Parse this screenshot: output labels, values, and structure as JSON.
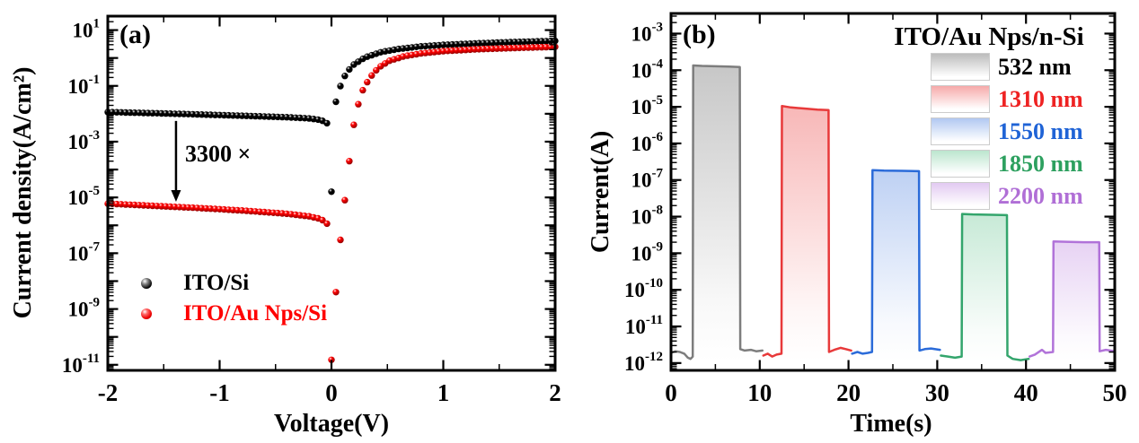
{
  "figure_background": "#ffffff",
  "chart_data": [
    {
      "type": "scatter",
      "panel_label": "(a)",
      "xlabel": "Voltage(V)",
      "ylabel": "Current density(A/cm²)",
      "xlim": [
        -2,
        2
      ],
      "x_ticks": [
        -2,
        -1,
        0,
        1,
        2
      ],
      "x_minor_step": 0.5,
      "ylog": true,
      "ylim_exp": [
        -11.2,
        1.5
      ],
      "y_labeled_exps": [
        1,
        -1,
        -3,
        -5,
        -7,
        -9,
        -11
      ],
      "marker_step_v": 0.04,
      "series": [
        {
          "name": "ITO/Si",
          "color": "#000000",
          "anchors_v_jacm2": [
            [
              -2,
              0.0115
            ],
            [
              -1.6,
              0.0105
            ],
            [
              -1.2,
              0.0095
            ],
            [
              -0.8,
              0.0085
            ],
            [
              -0.4,
              0.0075
            ],
            [
              -0.2,
              0.0068
            ],
            [
              -0.1,
              0.006
            ],
            [
              -0.06,
              0.0052
            ],
            [
              -0.03,
              0.0043
            ],
            [
              0,
              1.6e-05
            ],
            [
              0.03,
              0.018
            ],
            [
              0.06,
              0.06
            ],
            [
              0.1,
              0.16
            ],
            [
              0.14,
              0.32
            ],
            [
              0.2,
              0.58
            ],
            [
              0.3,
              1.05
            ],
            [
              0.45,
              1.65
            ],
            [
              0.6,
              2.1
            ],
            [
              0.8,
              2.6
            ],
            [
              1.0,
              2.95
            ],
            [
              1.3,
              3.35
            ],
            [
              1.6,
              3.7
            ],
            [
              2.0,
              4.1
            ]
          ]
        },
        {
          "name": "ITO/Au Nps/Si",
          "color": "#ff0000",
          "anchors_v_jacm2": [
            [
              -2,
              6e-06
            ],
            [
              -1.6,
              5e-06
            ],
            [
              -1.2,
              4.2e-06
            ],
            [
              -0.8,
              3.4e-06
            ],
            [
              -0.4,
              2.6e-06
            ],
            [
              -0.2,
              2.1e-06
            ],
            [
              -0.1,
              1.7e-06
            ],
            [
              -0.05,
              1.3e-06
            ],
            [
              -0.02,
              9e-07
            ],
            [
              0,
              1.5e-11
            ],
            [
              0.04,
              4e-09
            ],
            [
              0.08,
              3e-07
            ],
            [
              0.12,
              8e-06
            ],
            [
              0.16,
              0.0002
            ],
            [
              0.2,
              0.004
            ],
            [
              0.24,
              0.022
            ],
            [
              0.28,
              0.07
            ],
            [
              0.34,
              0.19
            ],
            [
              0.42,
              0.45
            ],
            [
              0.52,
              0.8
            ],
            [
              0.65,
              1.15
            ],
            [
              0.8,
              1.45
            ],
            [
              1.0,
              1.75
            ],
            [
              1.3,
              2.05
            ],
            [
              1.6,
              2.25
            ],
            [
              2.0,
              2.5
            ]
          ]
        }
      ],
      "annotation": {
        "text": "3300 ×",
        "x_v": -1.39,
        "y_from": 0.0055,
        "y_to": 7e-06
      }
    },
    {
      "type": "area",
      "panel_label": "(b)",
      "legend_title": "ITO/Au Nps/n-Si",
      "xlabel": "Time(s)",
      "ylabel": "Current(A)",
      "xlim": [
        0,
        50
      ],
      "x_ticks": [
        0,
        10,
        20,
        30,
        40,
        50
      ],
      "x_minor_step": 5,
      "ylog": true,
      "ylim_exp": [
        -12.2,
        -2.45
      ],
      "y_labeled_exps": [
        -3,
        -4,
        -5,
        -6,
        -7,
        -8,
        -9,
        -10,
        -11,
        -12
      ],
      "series": [
        {
          "name": "532 nm",
          "line_color": "#7d7d7d",
          "fill_color": "#8f8f8f",
          "text_color": "#000000",
          "points_t_a": [
            [
              0,
              1.9e-12
            ],
            [
              0.5,
              2.1e-12
            ],
            [
              1.0,
              2e-12
            ],
            [
              1.5,
              1.8e-12
            ],
            [
              1.9,
              1.4e-12
            ],
            [
              2.2,
              1.3e-12
            ],
            [
              2.45,
              1.5e-12
            ],
            [
              2.5,
              0.000135
            ],
            [
              3.5,
              0.000131
            ],
            [
              5,
              0.000128
            ],
            [
              6.5,
              0.000125
            ],
            [
              7.75,
              0.000122
            ],
            [
              7.8,
              2.4e-12
            ],
            [
              8.3,
              2.2e-12
            ],
            [
              9.0,
              2.3e-12
            ],
            [
              9.6,
              2.1e-12
            ],
            [
              10.3,
              2.2e-12
            ]
          ]
        },
        {
          "name": "1310 nm",
          "line_color": "#e8393a",
          "fill_color": "#f07070",
          "text_color": "#ee2222",
          "points_t_a": [
            [
              10.4,
              1.6e-12
            ],
            [
              10.9,
              1.8e-12
            ],
            [
              11.4,
              1.5e-12
            ],
            [
              11.9,
              1.7e-12
            ],
            [
              12.45,
              1.8e-12
            ],
            [
              12.5,
              1.05e-05
            ],
            [
              13.5,
              9.6e-06
            ],
            [
              15,
              9e-06
            ],
            [
              16.5,
              8.4e-06
            ],
            [
              17.75,
              8.1e-06
            ],
            [
              17.8,
              2e-12
            ],
            [
              18.4,
              2.3e-12
            ],
            [
              19.1,
              2.6e-12
            ],
            [
              19.7,
              2.4e-12
            ],
            [
              20.3,
              2.2e-12
            ]
          ]
        },
        {
          "name": "1550 nm",
          "line_color": "#2b6bd9",
          "fill_color": "#7da3e8",
          "text_color": "#1f63d6",
          "points_t_a": [
            [
              20.4,
              1.8e-12
            ],
            [
              21.0,
              2e-12
            ],
            [
              21.6,
              1.8e-12
            ],
            [
              22.2,
              1.9e-12
            ],
            [
              22.65,
              2e-12
            ],
            [
              22.7,
              1.85e-07
            ],
            [
              24,
              1.8e-07
            ],
            [
              26,
              1.78e-07
            ],
            [
              27.95,
              1.74e-07
            ],
            [
              28.0,
              2.2e-12
            ],
            [
              28.6,
              2.4e-12
            ],
            [
              29.3,
              2.5e-12
            ],
            [
              30.3,
              2.3e-12
            ]
          ]
        },
        {
          "name": "1850 nm",
          "line_color": "#33a56c",
          "fill_color": "#8fd4ae",
          "text_color": "#2da05f",
          "points_t_a": [
            [
              30.4,
              1.6e-12
            ],
            [
              31.2,
              1.5e-12
            ],
            [
              32.0,
              1.4e-12
            ],
            [
              32.75,
              1.5e-12
            ],
            [
              32.8,
              1.18e-08
            ],
            [
              34,
              1.15e-08
            ],
            [
              36,
              1.12e-08
            ],
            [
              37.85,
              1.1e-08
            ],
            [
              37.9,
              1.6e-12
            ],
            [
              38.5,
              1.3e-12
            ],
            [
              39.4,
              1.2e-12
            ],
            [
              40.3,
              1.3e-12
            ]
          ]
        },
        {
          "name": "2200 nm",
          "line_color": "#b173d9",
          "fill_color": "#cfa6e8",
          "text_color": "#b06fd6",
          "points_t_a": [
            [
              40.4,
              1.5e-12
            ],
            [
              41.0,
              1.7e-12
            ],
            [
              41.8,
              2.3e-12
            ],
            [
              42.2,
              1.9e-12
            ],
            [
              43.05,
              2e-12
            ],
            [
              43.1,
              2.1e-09
            ],
            [
              44.5,
              2.05e-09
            ],
            [
              46.5,
              2e-09
            ],
            [
              48.25,
              2e-09
            ],
            [
              48.3,
              2.1e-12
            ],
            [
              49.0,
              2.3e-12
            ],
            [
              50,
              2.1e-12
            ]
          ]
        }
      ]
    }
  ]
}
